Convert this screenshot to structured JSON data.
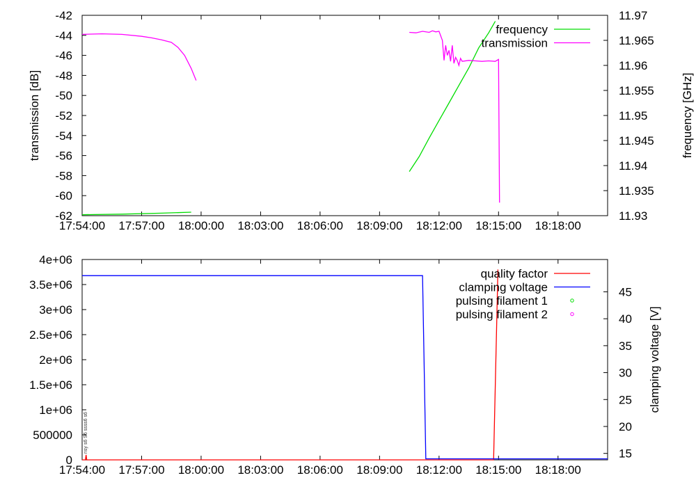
{
  "chart_data": [
    {
      "type": "line",
      "title": "",
      "xlabel": "",
      "ylabel": "transmission [dB]",
      "y2label": "frequency [GHz]",
      "x_ticks": [
        "17:54:00",
        "17:57:00",
        "18:00:00",
        "18:03:00",
        "18:06:00",
        "18:09:00",
        "18:12:00",
        "18:15:00",
        "18:18:00"
      ],
      "xlim": [
        "17:54:00",
        "18:20:30"
      ],
      "ylim": [
        -62,
        -42
      ],
      "y_ticks": [
        "-42",
        "-44",
        "-46",
        "-48",
        "-50",
        "-52",
        "-54",
        "-56",
        "-58",
        "-60",
        "-62"
      ],
      "y2lim": [
        11.93,
        11.97
      ],
      "y2_ticks": [
        "11.97",
        "11.965",
        "11.96",
        "11.955",
        "11.95",
        "11.945",
        "11.94",
        "11.935",
        "11.93"
      ],
      "legend_position": "top-right",
      "series": [
        {
          "name": "frequency",
          "axis": "right",
          "color": "#00dd00",
          "points": [
            [
              "17:54:00",
              11.9302
            ],
            [
              "17:56:00",
              11.9303
            ],
            [
              "17:58:00",
              11.9305
            ],
            [
              "17:59:30",
              11.9307
            ],
            null,
            [
              "18:10:30",
              11.9388
            ],
            [
              "18:11:00",
              11.9418
            ],
            [
              "18:11:30",
              11.9455
            ],
            [
              "18:12:00",
              11.949
            ],
            [
              "18:12:30",
              11.9525
            ],
            [
              "18:13:00",
              11.956
            ],
            [
              "18:13:30",
              11.9595
            ],
            [
              "18:14:00",
              11.9635
            ],
            [
              "18:14:30",
              11.9665
            ],
            [
              "18:14:50",
              11.9688
            ]
          ]
        },
        {
          "name": "transmission",
          "axis": "left",
          "color": "#ff00ff",
          "points": [
            [
              "17:54:00",
              -43.9
            ],
            [
              "17:55:00",
              -43.85
            ],
            [
              "17:56:00",
              -43.9
            ],
            [
              "17:57:00",
              -44.1
            ],
            [
              "17:57:30",
              -44.25
            ],
            [
              "17:58:00",
              -44.45
            ],
            [
              "17:58:30",
              -44.7
            ],
            [
              "17:58:50",
              -45.2
            ],
            [
              "17:59:10",
              -46.0
            ],
            [
              "17:59:30",
              -47.3
            ],
            [
              "17:59:45",
              -48.5
            ],
            null,
            [
              "18:10:30",
              -43.7
            ],
            [
              "18:10:50",
              -43.75
            ],
            [
              "18:11:10",
              -43.6
            ],
            [
              "18:11:30",
              -43.7
            ],
            [
              "18:11:40",
              -43.55
            ],
            [
              "18:11:50",
              -43.65
            ],
            [
              "18:12:00",
              -43.6
            ],
            [
              "18:12:10",
              -44.5
            ],
            [
              "18:12:15",
              -46.5
            ],
            [
              "18:12:20",
              -45.0
            ],
            [
              "18:12:25",
              -46.0
            ],
            [
              "18:12:30",
              -45.5
            ],
            [
              "18:12:35",
              -46.6
            ],
            [
              "18:12:40",
              -45.0
            ],
            [
              "18:12:45",
              -46.8
            ],
            [
              "18:12:50",
              -46.2
            ],
            [
              "18:12:55",
              -46.5
            ],
            [
              "18:13:00",
              -47.0
            ],
            [
              "18:13:05",
              -46.3
            ],
            [
              "18:13:10",
              -46.6
            ],
            [
              "18:13:30",
              -46.5
            ],
            [
              "18:13:50",
              -46.55
            ],
            [
              "18:14:10",
              -46.6
            ],
            [
              "18:14:30",
              -46.55
            ],
            [
              "18:14:50",
              -46.6
            ],
            [
              "18:15:00",
              -46.4
            ],
            [
              "18:15:03",
              -60.7
            ]
          ]
        }
      ]
    },
    {
      "type": "line",
      "title": "",
      "xlabel": "",
      "ylabel": "",
      "y2label": "clamping voltage [V]",
      "x_ticks": [
        "17:54:00",
        "17:57:00",
        "18:00:00",
        "18:03:00",
        "18:06:00",
        "18:09:00",
        "18:12:00",
        "18:15:00",
        "18:18:00"
      ],
      "xlim": [
        "17:54:00",
        "18:20:30"
      ],
      "ylim": [
        0,
        4000000
      ],
      "y_ticks": [
        "4e+06",
        "3.5e+06",
        "3e+06",
        "2.5e+06",
        "2e+06",
        "1.5e+06",
        "1e+06",
        "500000",
        "0"
      ],
      "y2lim": [
        13.8,
        51.0
      ],
      "y2_ticks": [
        "45",
        "40",
        "35",
        "30",
        "25",
        "20",
        "15"
      ],
      "legend_position": "top-right",
      "faint_label": "nsy s6 S6 ssss6 s6",
      "series": [
        {
          "name": "quality factor",
          "axis": "left",
          "color": "#ff0000",
          "points": [
            [
              "17:54:00",
              0
            ],
            [
              "17:54:10",
              0
            ],
            [
              "17:54:12",
              100000
            ],
            [
              "17:54:14",
              0
            ],
            [
              "18:14:45",
              0
            ],
            [
              "18:14:58",
              3800000
            ]
          ]
        },
        {
          "name": "clamping voltage",
          "axis": "right",
          "color": "#0000ff",
          "points": [
            [
              "17:54:00",
              48.0
            ],
            [
              "18:11:10",
              48.0
            ],
            [
              "18:11:20",
              14.0
            ],
            [
              "18:20:30",
              14.0
            ]
          ]
        },
        {
          "name": "pulsing filament 1",
          "axis": "left",
          "color": "#00dd00",
          "marker": "circle",
          "points": []
        },
        {
          "name": "pulsing filament 2",
          "axis": "left",
          "color": "#ff00ff",
          "marker": "circle",
          "points": []
        }
      ]
    }
  ]
}
